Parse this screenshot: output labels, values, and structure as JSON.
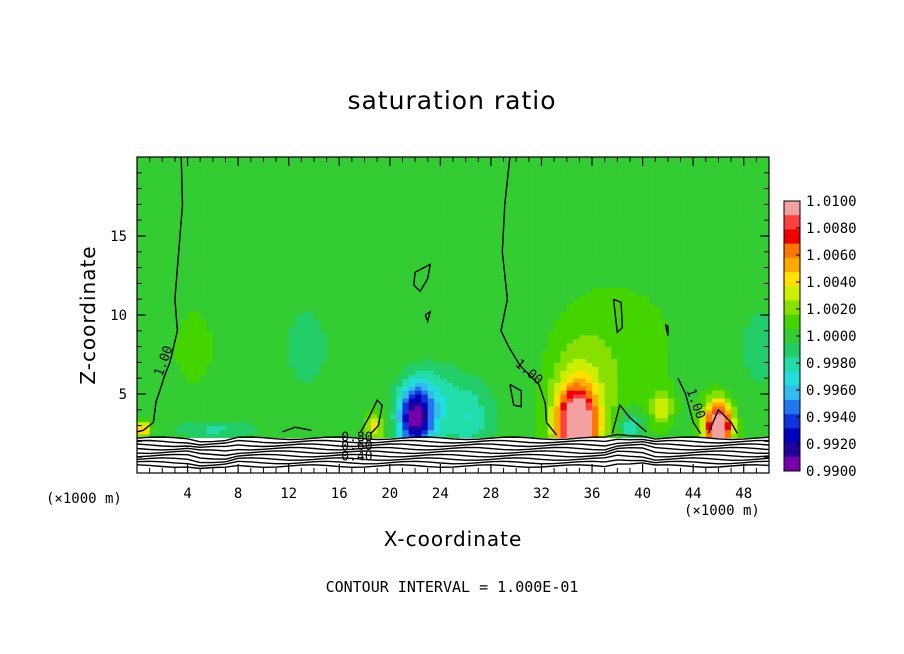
{
  "chart_data": {
    "type": "heatmap",
    "title": "saturation ratio",
    "xlabel": "X-coordinate",
    "ylabel": "Z-coordinate",
    "x_unit": "(×1000 m)",
    "x_unit_right": "(×1000 m)",
    "xlim": [
      0,
      50
    ],
    "ylim": [
      0,
      20
    ],
    "x_ticks": [
      "4",
      "8",
      "12",
      "16",
      "20",
      "24",
      "28",
      "32",
      "36",
      "40",
      "44",
      "48"
    ],
    "y_ticks": [
      "5",
      "10",
      "15"
    ],
    "colorbar": {
      "labels": [
        "1.0100",
        "1.0080",
        "1.0060",
        "1.0040",
        "1.0020",
        "1.0000",
        "0.9980",
        "0.9960",
        "0.9940",
        "0.9920",
        "0.9900"
      ],
      "colors": [
        "#f2a0a0",
        "#ff4040",
        "#ee0000",
        "#ff7700",
        "#ffaa00",
        "#ffe000",
        "#ccee00",
        "#88e000",
        "#44d400",
        "#33cc33",
        "#22cc66",
        "#22ddaa",
        "#22dddd",
        "#33bbee",
        "#2277ee",
        "#1133dd",
        "#0000bb",
        "#220099",
        "#7700aa"
      ],
      "range": [
        0.99,
        1.01
      ]
    },
    "background_value": 1.0,
    "features": [
      {
        "kind": "dry",
        "x": 22.0,
        "z": 3.5,
        "sx": 1.3,
        "sz": 2.0,
        "amp": -0.0085
      },
      {
        "kind": "dry",
        "x": 23.5,
        "z": 4.5,
        "sx": 2.5,
        "sz": 2.5,
        "amp": -0.003
      },
      {
        "kind": "dry",
        "x": 26.5,
        "z": 3.5,
        "sx": 1.5,
        "sz": 1.8,
        "amp": -0.002
      },
      {
        "kind": "dry",
        "x": 39.0,
        "z": 3.0,
        "sx": 1.0,
        "sz": 1.0,
        "amp": -0.003
      },
      {
        "kind": "dry",
        "x": 6.0,
        "z": 2.8,
        "sx": 3.0,
        "sz": 0.6,
        "amp": -0.002
      },
      {
        "kind": "moist",
        "x": 34.8,
        "z": 3.0,
        "sx": 1.5,
        "sz": 2.4,
        "amp": 0.012
      },
      {
        "kind": "moist",
        "x": 35.0,
        "z": 5.5,
        "sx": 3.5,
        "sz": 5.0,
        "amp": 0.0025
      },
      {
        "kind": "moist",
        "x": 46.0,
        "z": 3.0,
        "sx": 1.1,
        "sz": 1.6,
        "amp": 0.0115
      },
      {
        "kind": "moist",
        "x": 41.5,
        "z": 4.2,
        "sx": 0.8,
        "sz": 1.0,
        "amp": 0.0035
      },
      {
        "kind": "moist",
        "x": 18.8,
        "z": 3.0,
        "sx": 0.7,
        "sz": 0.9,
        "amp": 0.004
      },
      {
        "kind": "moist",
        "x": 0.5,
        "z": 2.8,
        "sx": 0.5,
        "sz": 0.5,
        "amp": 0.006
      }
    ],
    "contour_labels": [
      "1.00",
      "1.00",
      "1.00",
      "0.80",
      "0.60",
      "0.40"
    ],
    "contour_interval": "CONTOUR INTERVAL =  1.000E-01"
  }
}
